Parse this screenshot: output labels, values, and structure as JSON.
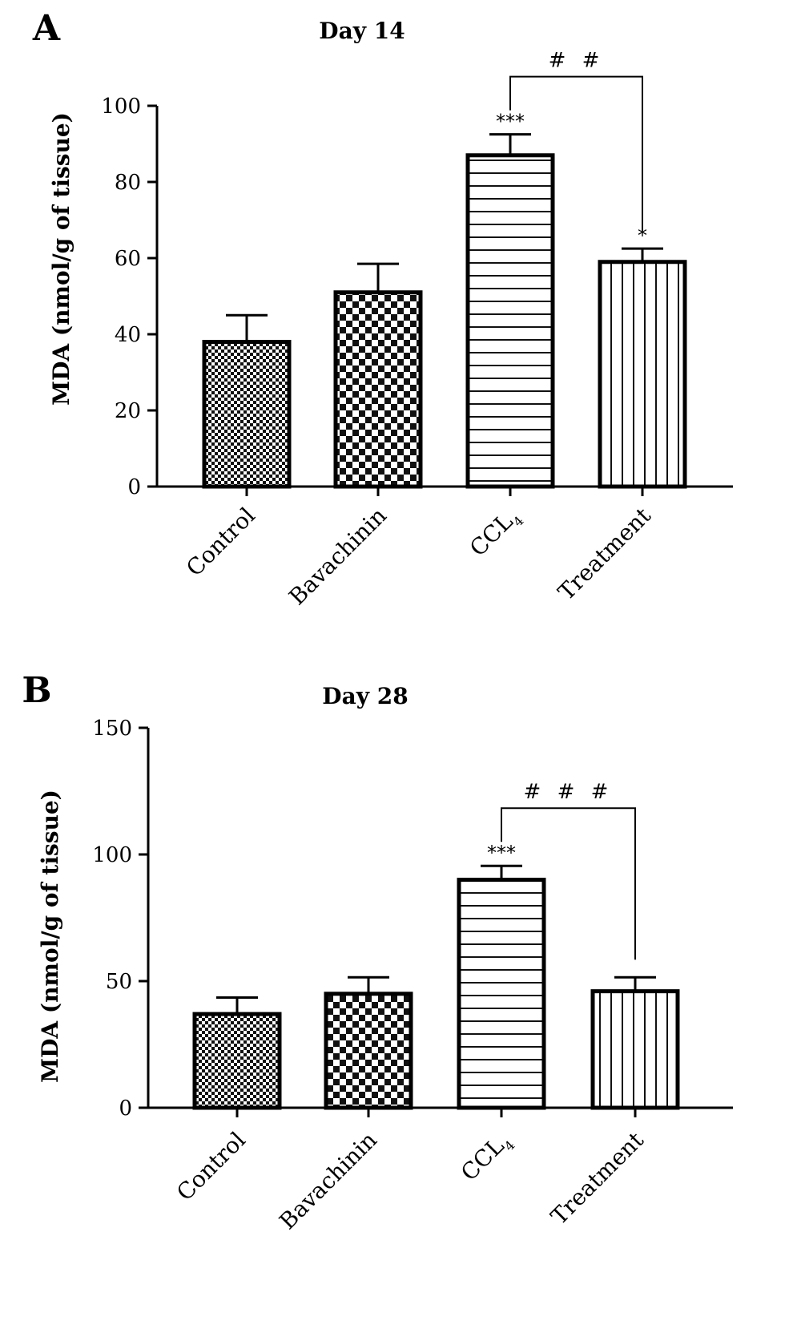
{
  "chart_data": [
    {
      "type": "bar",
      "panel_label": "A",
      "title": "Day 14",
      "ylabel": "MDA (nmol/g of tissue)",
      "xlabel": "",
      "ylim": [
        0,
        100
      ],
      "yticks": [
        "0",
        "20",
        "40",
        "60",
        "80",
        "100"
      ],
      "categories": [
        {
          "label": "Control",
          "sub": ""
        },
        {
          "label": "Bavachinin",
          "sub": ""
        },
        {
          "label": "CCL",
          "sub": "4"
        },
        {
          "label": "Treatment",
          "sub": ""
        }
      ],
      "values": [
        38,
        51,
        87,
        59
      ],
      "error": [
        7,
        7.5,
        5.5,
        3.5
      ],
      "patterns": [
        "fine-check",
        "coarse-check",
        "horizontal",
        "vertical"
      ],
      "significance": [
        "",
        "",
        "***",
        "*"
      ],
      "bracket": {
        "from": 2,
        "to": 3,
        "label": "##"
      },
      "grid": false,
      "legend": "none"
    },
    {
      "type": "bar",
      "panel_label": "B",
      "title": "Day 28",
      "ylabel": "MDA (nmol/g of tissue)",
      "xlabel": "",
      "ylim": [
        0,
        150
      ],
      "yticks": [
        "0",
        "50",
        "100",
        "150"
      ],
      "categories": [
        {
          "label": "Control",
          "sub": ""
        },
        {
          "label": "Bavachinin",
          "sub": ""
        },
        {
          "label": "CCL",
          "sub": "4"
        },
        {
          "label": "Treatment",
          "sub": ""
        }
      ],
      "values": [
        37,
        45,
        90,
        46
      ],
      "error": [
        6.5,
        6.5,
        5.5,
        5.5
      ],
      "patterns": [
        "fine-check",
        "coarse-check",
        "horizontal",
        "vertical"
      ],
      "significance": [
        "",
        "",
        "***",
        ""
      ],
      "bracket": {
        "from": 2,
        "to": 3,
        "label": "###"
      },
      "grid": false,
      "legend": "none"
    }
  ]
}
